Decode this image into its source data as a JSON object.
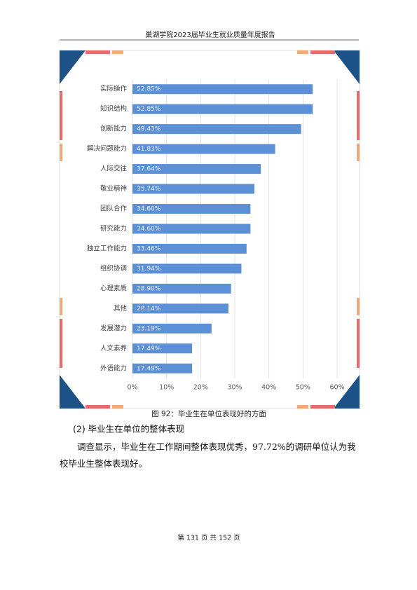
{
  "header": "巢湖学院2023届毕业生就业质量年度报告",
  "chart_data": {
    "type": "hbar",
    "categories": [
      "实际操作",
      "知识结构",
      "创新能力",
      "解决问题能力",
      "人际交往",
      "敬业精神",
      "团队合作",
      "研究能力",
      "独立工作能力",
      "组织协调",
      "心理素质",
      "其他",
      "发展潜力",
      "人文素养",
      "外语能力"
    ],
    "values": [
      52.85,
      52.85,
      49.43,
      41.83,
      37.64,
      35.74,
      34.6,
      34.6,
      33.46,
      31.94,
      28.9,
      28.14,
      23.19,
      17.49,
      17.49
    ],
    "value_labels": [
      "52.85%",
      "52.85%",
      "49.43%",
      "41.83%",
      "37.64%",
      "35.74%",
      "34.60%",
      "34.60%",
      "33.46%",
      "31.94%",
      "28.90%",
      "28.14%",
      "23.19%",
      "17.49%",
      "17.49%"
    ],
    "color": "#5b8fd6",
    "xlim": [
      0,
      60
    ],
    "xticks": [
      {
        "value": 0,
        "label": "0%"
      },
      {
        "value": 10,
        "label": "10%"
      },
      {
        "value": 20,
        "label": "20%"
      },
      {
        "value": 30,
        "label": "30%"
      },
      {
        "value": 40,
        "label": "40%"
      },
      {
        "value": 50,
        "label": "50%"
      },
      {
        "value": 60,
        "label": "60%"
      }
    ],
    "grid": true
  },
  "caption": "图 92：毕业生在单位表现好的方面",
  "heading": "(2) 毕业生在单位的整体表现",
  "paragraph": "调查显示，毕业生在工作期间整体表现优秀，97.72%的调研单位认为我校毕业生整体表现好。",
  "footer": "第 131 页 共 152 页"
}
